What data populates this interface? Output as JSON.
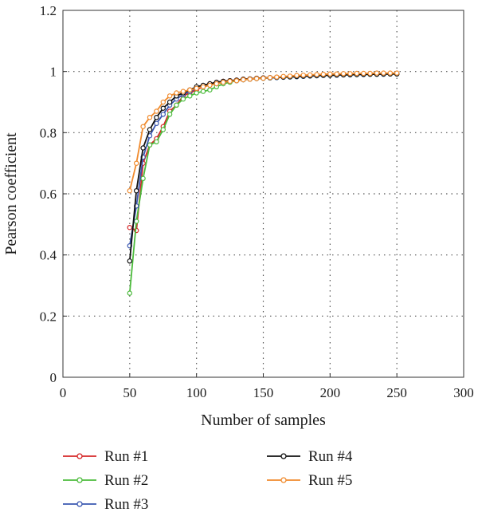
{
  "chart_data": {
    "type": "line",
    "xlabel": "Number of samples",
    "ylabel": "Pearson coefficient",
    "xlim": [
      0,
      300
    ],
    "ylim": [
      0,
      1.2
    ],
    "xticks": [
      "0",
      "50",
      "100",
      "150",
      "200",
      "250",
      "300"
    ],
    "yticks": [
      "0",
      "0.2",
      "0.4",
      "0.6",
      "0.8",
      "1",
      "1.2"
    ],
    "grid": true,
    "legend_position": "bottom",
    "series": [
      {
        "name": "Run #1",
        "color": "#d62728",
        "x": [
          50,
          55,
          60,
          65,
          70,
          75,
          80,
          85,
          90,
          95,
          100,
          105,
          110,
          115,
          120,
          125,
          130,
          135,
          140,
          145,
          150,
          155,
          160,
          165,
          170,
          175,
          180,
          185,
          190,
          195,
          200,
          205,
          210,
          215,
          220,
          225,
          230,
          235,
          240,
          245,
          250
        ],
        "y": [
          0.49,
          0.48,
          0.7,
          0.76,
          0.78,
          0.82,
          0.87,
          0.89,
          0.92,
          0.93,
          0.94,
          0.95,
          0.96,
          0.965,
          0.968,
          0.97,
          0.972,
          0.975,
          0.976,
          0.978,
          0.979,
          0.98,
          0.981,
          0.982,
          0.983,
          0.984,
          0.985,
          0.986,
          0.987,
          0.988,
          0.989,
          0.989,
          0.99,
          0.99,
          0.991,
          0.991,
          0.992,
          0.992,
          0.992,
          0.993,
          0.993
        ]
      },
      {
        "name": "Run #2",
        "color": "#4cbb3c",
        "x": [
          50,
          55,
          60,
          65,
          70,
          75,
          80,
          85,
          90,
          95,
          100,
          105,
          110,
          115,
          120,
          125,
          130,
          135,
          140,
          145,
          150,
          155,
          160,
          165,
          170,
          175,
          180,
          185,
          190,
          195,
          200,
          205,
          210,
          215,
          220,
          225,
          230,
          235,
          240,
          245,
          250
        ],
        "y": [
          0.275,
          0.51,
          0.65,
          0.76,
          0.77,
          0.81,
          0.86,
          0.89,
          0.91,
          0.92,
          0.93,
          0.935,
          0.94,
          0.95,
          0.96,
          0.965,
          0.97,
          0.973,
          0.975,
          0.977,
          0.978,
          0.979,
          0.98,
          0.981,
          0.982,
          0.983,
          0.984,
          0.985,
          0.986,
          0.987,
          0.988,
          0.988,
          0.989,
          0.989,
          0.99,
          0.99,
          0.991,
          0.991,
          0.991,
          0.992,
          0.992
        ]
      },
      {
        "name": "Run #3",
        "color": "#3a57b0",
        "x": [
          50,
          55,
          60,
          65,
          70,
          75,
          80,
          85,
          90,
          95,
          100,
          105,
          110,
          115,
          120,
          125,
          130,
          135,
          140,
          145,
          150,
          155,
          160,
          165,
          170,
          175,
          180,
          185,
          190,
          195,
          200,
          205,
          210,
          215,
          220,
          225,
          230,
          235,
          240,
          245,
          250
        ],
        "y": [
          0.43,
          0.56,
          0.72,
          0.79,
          0.83,
          0.86,
          0.89,
          0.91,
          0.925,
          0.935,
          0.945,
          0.95,
          0.955,
          0.96,
          0.965,
          0.968,
          0.97,
          0.973,
          0.975,
          0.977,
          0.978,
          0.979,
          0.98,
          0.981,
          0.982,
          0.983,
          0.984,
          0.985,
          0.986,
          0.987,
          0.988,
          0.988,
          0.989,
          0.989,
          0.99,
          0.99,
          0.991,
          0.991,
          0.991,
          0.992,
          0.992
        ]
      },
      {
        "name": "Run #4",
        "color": "#111111",
        "x": [
          50,
          55,
          60,
          65,
          70,
          75,
          80,
          85,
          90,
          95,
          100,
          105,
          110,
          115,
          120,
          125,
          130,
          135,
          140,
          145,
          150,
          155,
          160,
          165,
          170,
          175,
          180,
          185,
          190,
          195,
          200,
          205,
          210,
          215,
          220,
          225,
          230,
          235,
          240,
          245,
          250
        ],
        "y": [
          0.38,
          0.61,
          0.75,
          0.81,
          0.85,
          0.88,
          0.9,
          0.92,
          0.93,
          0.94,
          0.95,
          0.955,
          0.96,
          0.965,
          0.968,
          0.97,
          0.972,
          0.975,
          0.976,
          0.978,
          0.979,
          0.98,
          0.981,
          0.982,
          0.983,
          0.984,
          0.985,
          0.986,
          0.987,
          0.988,
          0.988,
          0.989,
          0.989,
          0.99,
          0.99,
          0.991,
          0.991,
          0.991,
          0.992,
          0.992,
          0.992
        ]
      },
      {
        "name": "Run #5",
        "color": "#f08a2c",
        "x": [
          50,
          55,
          60,
          65,
          70,
          75,
          80,
          85,
          90,
          95,
          100,
          105,
          110,
          115,
          120,
          125,
          130,
          135,
          140,
          145,
          150,
          155,
          160,
          165,
          170,
          175,
          180,
          185,
          190,
          195,
          200,
          205,
          210,
          215,
          220,
          225,
          230,
          235,
          240,
          245,
          250
        ],
        "y": [
          0.61,
          0.7,
          0.82,
          0.85,
          0.87,
          0.9,
          0.92,
          0.93,
          0.935,
          0.94,
          0.945,
          0.95,
          0.955,
          0.96,
          0.965,
          0.968,
          0.97,
          0.973,
          0.975,
          0.977,
          0.978,
          0.98,
          0.982,
          0.984,
          0.985,
          0.987,
          0.988,
          0.989,
          0.99,
          0.991,
          0.992,
          0.992,
          0.993,
          0.993,
          0.994,
          0.994,
          0.994,
          0.995,
          0.995,
          0.995,
          0.995
        ]
      }
    ]
  }
}
